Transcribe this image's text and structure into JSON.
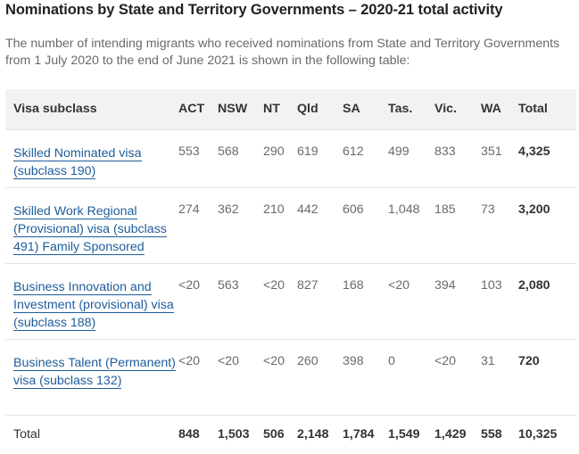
{
  "page": {
    "title": "Nominations by State and Territory Governments – 2020-21 total activity",
    "intro": "The number of intending migrants who received nominations from State and Territory Governments from 1 July 2020 to the end of June 2021 is shown in the following table:"
  },
  "table": {
    "headers": [
      "Visa subclass",
      "ACT",
      "NSW",
      "NT",
      "Qld",
      "SA",
      "Tas.",
      "Vic.",
      "WA",
      "Total"
    ],
    "rows": [
      {
        "visa": "Skilled Nominated visa (subclass 190)",
        "values": [
          "553",
          "568",
          "290",
          "619",
          "612",
          "499",
          "833",
          "351"
        ],
        "total": "4,325"
      },
      {
        "visa": "Skilled Work Regional (Provisional) visa (subclass 491) Family Sponsored",
        "values": [
          "274",
          "362",
          "210",
          "442",
          "606",
          "1,048",
          "185",
          "73"
        ],
        "total": "3,200"
      },
      {
        "visa": "Business Innovation and Investment (provisional) visa (subclass 188)",
        "values": [
          "<20",
          "563",
          "<20",
          "827",
          "168",
          "<20",
          "394",
          "103"
        ],
        "total": "2,080"
      },
      {
        "visa": "Business Talent (Permanent) visa (subclass 132)",
        "values": [
          "<20",
          "<20",
          "<20",
          "260",
          "398",
          "0",
          "<20",
          "31"
        ],
        "total": "720"
      }
    ],
    "total_row": {
      "label": "Total",
      "values": [
        "848",
        "1,503",
        "506",
        "2,148",
        "1,784",
        "1,549",
        "1,429",
        "558"
      ],
      "total": "10,325"
    }
  },
  "colors": {
    "link": "#1d5c9b",
    "header_bg": "#f2f2f2",
    "body_text": "#6a6a6a"
  }
}
